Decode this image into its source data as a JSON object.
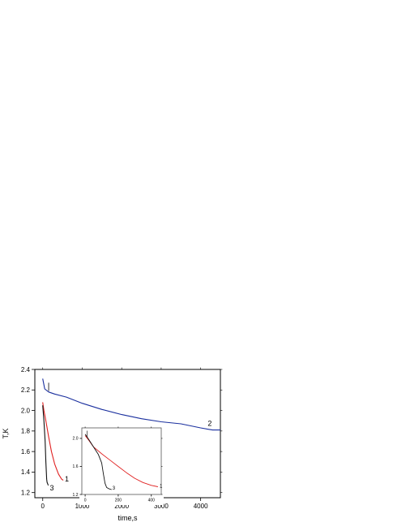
{
  "chart_data": [
    {
      "type": "line",
      "title": "",
      "xlabel": "time,s",
      "ylabel": "T,K",
      "xlim": [
        -200,
        4500
      ],
      "ylim": [
        1.15,
        2.4
      ],
      "xticks": [
        "0",
        "1000",
        "2000",
        "3000",
        "4000"
      ],
      "yticks": [
        "1.2",
        "1.4",
        "1.6",
        "1.8",
        "2.0",
        "2.2",
        "2.4"
      ],
      "grid": false,
      "series": [
        {
          "name": "2",
          "color": "#1a2f9e",
          "x": [
            0,
            50,
            150,
            300,
            600,
            1000,
            1500,
            2000,
            2500,
            3000,
            3500,
            4000,
            4300,
            4500
          ],
          "y": [
            2.31,
            2.21,
            2.18,
            2.16,
            2.13,
            2.07,
            2.01,
            1.96,
            1.92,
            1.89,
            1.87,
            1.83,
            1.81,
            1.81
          ]
        },
        {
          "name": "1",
          "color": "#e02020",
          "x": [
            0,
            30,
            80,
            150,
            220,
            300,
            400,
            480,
            520
          ],
          "y": [
            2.08,
            2.0,
            1.9,
            1.74,
            1.6,
            1.48,
            1.38,
            1.33,
            1.32
          ]
        },
        {
          "name": "3",
          "color": "#111111",
          "x": [
            0,
            30,
            60,
            80,
            100,
            110,
            130,
            140
          ],
          "y": [
            2.05,
            1.9,
            1.7,
            1.5,
            1.33,
            1.3,
            1.28,
            1.27
          ]
        }
      ],
      "annotations": [
        {
          "text": "2",
          "x": 4180,
          "y": 1.85
        },
        {
          "text": "1",
          "x": 560,
          "y": 1.31
        },
        {
          "text": "3",
          "x": 180,
          "y": 1.22
        }
      ]
    },
    {
      "type": "line",
      "title": "",
      "xlabel": "",
      "ylabel": "",
      "xlim": [
        -20,
        460
      ],
      "ylim": [
        1.2,
        2.15
      ],
      "xticks": [
        "0",
        "200",
        "400"
      ],
      "yticks": [
        "1.2",
        "1.6",
        "2.0"
      ],
      "grid": false,
      "series": [
        {
          "name": "1",
          "color": "#e02020",
          "x": [
            0,
            20,
            50,
            100,
            150,
            200,
            250,
            300,
            350,
            400,
            440
          ],
          "y": [
            2.04,
            1.98,
            1.88,
            1.78,
            1.69,
            1.6,
            1.51,
            1.43,
            1.37,
            1.33,
            1.31
          ]
        },
        {
          "name": "3",
          "color": "#111111",
          "x": [
            0,
            20,
            50,
            80,
            100,
            110,
            120,
            130,
            145,
            160
          ],
          "y": [
            2.06,
            1.99,
            1.88,
            1.77,
            1.65,
            1.5,
            1.36,
            1.3,
            1.28,
            1.27
          ]
        }
      ],
      "annotations": [
        {
          "text": "1",
          "x": 450,
          "y": 1.3
        },
        {
          "text": "3",
          "x": 165,
          "y": 1.27
        }
      ]
    }
  ]
}
